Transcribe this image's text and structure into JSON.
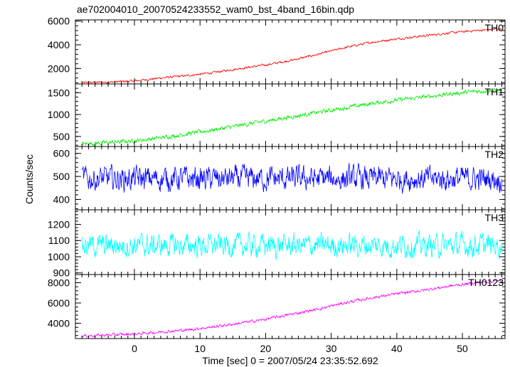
{
  "chart_data": {
    "type": "line",
    "title": "ae702004010_20070524233552_wam0_bst_4band_16bin.qdp",
    "xlabel": "Time [sec] 0 = 2007/05/24 23:35:52.692",
    "ylabel": "Counts/sec",
    "xlim": [
      -9,
      56.5
    ],
    "x_ticks": [
      0,
      10,
      20,
      30,
      40,
      50
    ],
    "x_tick_labels": [
      "0",
      "10",
      "20",
      "30",
      "40",
      "50"
    ],
    "grid": false,
    "legend": "none",
    "series": [
      {
        "name": "TH0",
        "color": "#ff0000",
        "ylim": [
          700,
          6100
        ],
        "y_ticks": [
          2000,
          4000,
          6000
        ],
        "y_tick_labels": [
          "2000",
          "4000",
          "6000"
        ],
        "x": [
          -8,
          -4,
          0,
          4,
          8,
          12,
          16,
          20,
          24,
          28,
          32,
          36,
          40,
          44,
          48,
          52,
          56
        ],
        "values": [
          800,
          850,
          950,
          1200,
          1400,
          1650,
          2000,
          2300,
          2700,
          3200,
          3750,
          4200,
          4500,
          4750,
          5000,
          5200,
          5350
        ],
        "noise": 80
      },
      {
        "name": "TH1",
        "color": "#00ee00",
        "ylim": [
          270,
          1700
        ],
        "y_ticks": [
          500,
          1000,
          1500
        ],
        "y_tick_labels": [
          "500",
          "1000",
          "1500"
        ],
        "x": [
          -8,
          -4,
          0,
          4,
          8,
          12,
          16,
          20,
          24,
          28,
          32,
          36,
          40,
          44,
          48,
          52,
          56
        ],
        "values": [
          330,
          360,
          400,
          470,
          560,
          650,
          750,
          850,
          950,
          1050,
          1150,
          1250,
          1330,
          1400,
          1470,
          1530,
          1560
        ],
        "noise": 40
      },
      {
        "name": "TH2",
        "color": "#0000ff",
        "ylim": [
          355,
          630
        ],
        "y_ticks": [
          400,
          500,
          600
        ],
        "y_tick_labels": [
          "400",
          "500",
          "600"
        ],
        "x": [
          -8,
          56
        ],
        "values": [
          490,
          490
        ],
        "noise": 45
      },
      {
        "name": "TH3",
        "color": "#00ffff",
        "ylim": [
          890,
          1290
        ],
        "y_ticks": [
          900,
          1000,
          1100,
          1200
        ],
        "y_tick_labels": [
          "900",
          "1000",
          "1100",
          "1200"
        ],
        "x": [
          -8,
          56
        ],
        "values": [
          1070,
          1070
        ],
        "noise": 60
      },
      {
        "name": "TH0123",
        "color": "#ff00ff",
        "ylim": [
          2500,
          8800
        ],
        "y_ticks": [
          4000,
          6000,
          8000
        ],
        "y_tick_labels": [
          "4000",
          "6000",
          "8000"
        ],
        "x": [
          -8,
          -4,
          0,
          4,
          8,
          12,
          16,
          20,
          24,
          28,
          32,
          36,
          40,
          44,
          48,
          52,
          56
        ],
        "values": [
          2750,
          2850,
          2950,
          3150,
          3350,
          3650,
          4000,
          4400,
          4900,
          5400,
          6000,
          6500,
          6900,
          7250,
          7650,
          8000,
          8200
        ],
        "noise": 120
      }
    ]
  }
}
